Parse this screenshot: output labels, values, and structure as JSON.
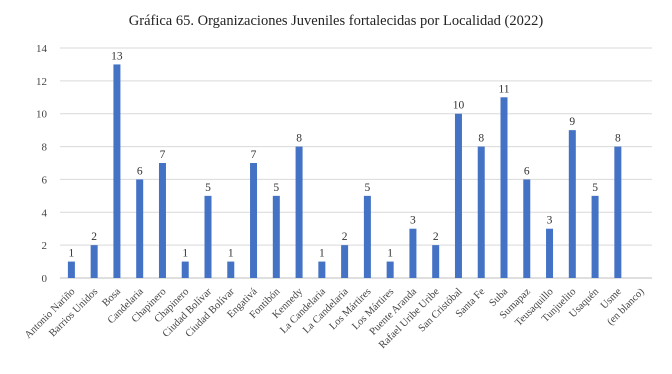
{
  "chart_data": {
    "type": "bar",
    "title": "Gráfica 65. Organizaciones Juveniles fortalecidas por Localidad (2022)",
    "categories": [
      "Antonio Nariño",
      "Barrios Unidos",
      "Bosa",
      "Candelaria",
      "Chapinero",
      "Chapinero",
      "Ciudad Bolívar",
      "Ciudad Bolívar",
      "Engativá",
      "Fontibón",
      "Kennedy",
      "La Candelaria",
      "La Candelaria",
      "Los Mártires",
      "Los Mártires",
      "Puente Aranda",
      "Rafael Uribe Uribe",
      "San Cristóbal",
      "Santa Fe",
      "Suba",
      "Sumapaz",
      "Teusaquillo",
      "Tunjuelito",
      "Usaquén",
      "Usme",
      "(en blanco)"
    ],
    "values": [
      1,
      2,
      13,
      6,
      7,
      1,
      5,
      1,
      7,
      5,
      8,
      1,
      2,
      5,
      1,
      3,
      2,
      10,
      8,
      11,
      6,
      3,
      9,
      5,
      8,
      null
    ],
    "yticks": [
      0,
      2,
      4,
      6,
      8,
      10,
      12,
      14
    ],
    "ylim": [
      0,
      14
    ],
    "grid": true,
    "legend": "none",
    "bar_color": "#4472c4"
  }
}
